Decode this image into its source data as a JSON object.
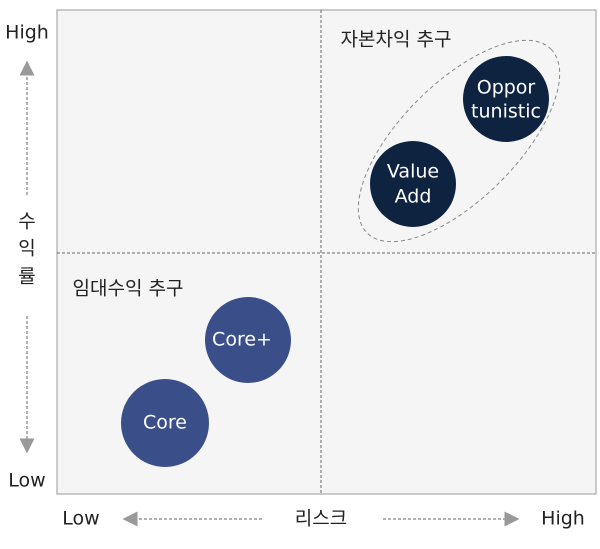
{
  "y_axis": {
    "high": "High",
    "label": [
      "수",
      "익",
      "률"
    ],
    "low": "Low"
  },
  "x_axis": {
    "low": "Low",
    "label": "리스크",
    "high": "High"
  },
  "groups": [
    {
      "label": "자본차익 추구"
    },
    {
      "label": "임대수익 추구"
    }
  ],
  "nodes": [
    {
      "lines": [
        "Core"
      ]
    },
    {
      "lines": [
        "Core+"
      ]
    },
    {
      "lines": [
        "Value",
        "Add"
      ]
    },
    {
      "lines": [
        "Oppor",
        "tunistic"
      ]
    }
  ]
}
